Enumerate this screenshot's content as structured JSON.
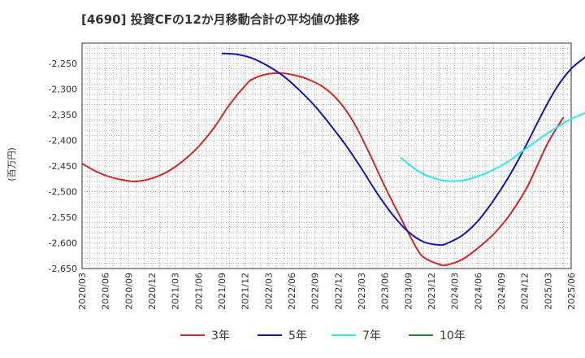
{
  "chart_data": {
    "type": "line",
    "title": "[4690]  投資CFの12か月移動合計の平均値の推移",
    "ylabel": "(百万円)",
    "xlabel": "",
    "ylim": [
      -2650,
      -2210
    ],
    "yticks": [
      -2250,
      -2300,
      -2350,
      -2400,
      -2450,
      -2500,
      -2550,
      -2600,
      -2650
    ],
    "ytick_labels": [
      "-2,250",
      "-2,300",
      "-2,350",
      "-2,400",
      "-2,450",
      "-2,500",
      "-2,550",
      "-2,600",
      "-2,650"
    ],
    "xticks": [
      "2020/03",
      "2020/06",
      "2020/09",
      "2020/12",
      "2021/03",
      "2021/06",
      "2021/09",
      "2021/12",
      "2022/03",
      "2022/06",
      "2022/09",
      "2022/12",
      "2023/03",
      "2023/06",
      "2023/09",
      "2023/12",
      "2024/03",
      "2024/06",
      "2024/09",
      "2024/12",
      "2025/03",
      "2025/06"
    ],
    "grid": true,
    "legend_position": "bottom",
    "series": [
      {
        "name": "3年",
        "color": "#dd2222",
        "points": [
          [
            "2020/03",
            -2445
          ],
          [
            "2020/05",
            -2462
          ],
          [
            "2020/07",
            -2473
          ],
          [
            "2020/09",
            -2479
          ],
          [
            "2020/10",
            -2480
          ],
          [
            "2020/12",
            -2474
          ],
          [
            "2021/02",
            -2461
          ],
          [
            "2021/04",
            -2440
          ],
          [
            "2021/06",
            -2412
          ],
          [
            "2021/08",
            -2375
          ],
          [
            "2021/10",
            -2330
          ],
          [
            "2021/12",
            -2293
          ],
          [
            "2022/01",
            -2280
          ],
          [
            "2022/03",
            -2270
          ],
          [
            "2022/05",
            -2269
          ],
          [
            "2022/07",
            -2275
          ],
          [
            "2022/08",
            -2280
          ],
          [
            "2022/10",
            -2295
          ],
          [
            "2022/12",
            -2322
          ],
          [
            "2023/02",
            -2365
          ],
          [
            "2023/04",
            -2425
          ],
          [
            "2023/06",
            -2490
          ],
          [
            "2023/08",
            -2550
          ],
          [
            "2023/10",
            -2608
          ],
          [
            "2023/11",
            -2628
          ],
          [
            "2024/01",
            -2642
          ],
          [
            "2024/02",
            -2643
          ],
          [
            "2024/04",
            -2632
          ],
          [
            "2024/06",
            -2610
          ],
          [
            "2024/08",
            -2583
          ],
          [
            "2024/10",
            -2547
          ],
          [
            "2024/12",
            -2500
          ],
          [
            "2025/01",
            -2470
          ],
          [
            "2025/03",
            -2405
          ],
          [
            "2025/05",
            -2355
          ]
        ]
      },
      {
        "name": "5年",
        "color": "#1111cc",
        "points": [
          [
            "2021/09",
            -2230
          ],
          [
            "2021/11",
            -2232
          ],
          [
            "2022/01",
            -2240
          ],
          [
            "2022/03",
            -2255
          ],
          [
            "2022/05",
            -2275
          ],
          [
            "2022/07",
            -2302
          ],
          [
            "2022/09",
            -2333
          ],
          [
            "2022/11",
            -2370
          ],
          [
            "2023/01",
            -2410
          ],
          [
            "2023/03",
            -2455
          ],
          [
            "2023/05",
            -2503
          ],
          [
            "2023/07",
            -2545
          ],
          [
            "2023/09",
            -2578
          ],
          [
            "2023/11",
            -2598
          ],
          [
            "2024/01",
            -2604
          ],
          [
            "2024/02",
            -2601
          ],
          [
            "2024/04",
            -2585
          ],
          [
            "2024/06",
            -2557
          ],
          [
            "2024/08",
            -2517
          ],
          [
            "2024/10",
            -2470
          ],
          [
            "2024/12",
            -2415
          ],
          [
            "2025/02",
            -2355
          ],
          [
            "2025/04",
            -2300
          ],
          [
            "2025/06",
            -2260
          ],
          [
            "2025/08",
            -2235
          ],
          [
            "2025/09",
            -2220
          ]
        ]
      },
      {
        "name": "7年",
        "color": "#22eeee",
        "points": [
          [
            "2023/08",
            -2433
          ],
          [
            "2023/10",
            -2457
          ],
          [
            "2023/12",
            -2472
          ],
          [
            "2024/02",
            -2479
          ],
          [
            "2024/04",
            -2478
          ],
          [
            "2024/06",
            -2470
          ],
          [
            "2024/08",
            -2457
          ],
          [
            "2024/10",
            -2440
          ],
          [
            "2024/12",
            -2418
          ],
          [
            "2025/02",
            -2396
          ],
          [
            "2025/04",
            -2376
          ],
          [
            "2025/06",
            -2358
          ],
          [
            "2025/08",
            -2345
          ],
          [
            "2025/09",
            -2338
          ]
        ]
      },
      {
        "name": "10年",
        "color": "#228822",
        "points": []
      }
    ]
  }
}
